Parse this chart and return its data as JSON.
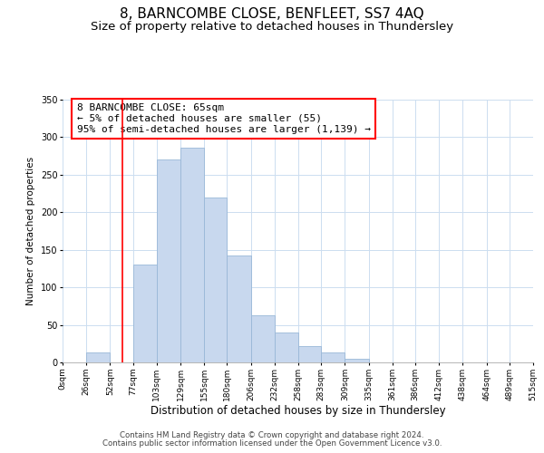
{
  "title": "8, BARNCOMBE CLOSE, BENFLEET, SS7 4AQ",
  "subtitle": "Size of property relative to detached houses in Thundersley",
  "xlabel": "Distribution of detached houses by size in Thundersley",
  "ylabel": "Number of detached properties",
  "bar_color": "#c8d8ee",
  "bar_edge_color": "#99b8d8",
  "redline_x": 65,
  "annotation_title": "8 BARNCOMBE CLOSE: 65sqm",
  "annotation_line1": "← 5% of detached houses are smaller (55)",
  "annotation_line2": "95% of semi-detached houses are larger (1,139) →",
  "bin_edges": [
    0,
    26,
    52,
    77,
    103,
    129,
    155,
    180,
    206,
    232,
    258,
    283,
    309,
    335,
    361,
    386,
    412,
    438,
    464,
    489,
    515
  ],
  "bin_counts": [
    0,
    13,
    0,
    130,
    270,
    286,
    220,
    142,
    63,
    40,
    22,
    13,
    5,
    0,
    0,
    0,
    0,
    0,
    0,
    0
  ],
  "tick_labels": [
    "0sqm",
    "26sqm",
    "52sqm",
    "77sqm",
    "103sqm",
    "129sqm",
    "155sqm",
    "180sqm",
    "206sqm",
    "232sqm",
    "258sqm",
    "283sqm",
    "309sqm",
    "335sqm",
    "361sqm",
    "386sqm",
    "412sqm",
    "438sqm",
    "464sqm",
    "489sqm",
    "515sqm"
  ],
  "ylim": [
    0,
    350
  ],
  "yticks": [
    0,
    50,
    100,
    150,
    200,
    250,
    300,
    350
  ],
  "footer_line1": "Contains HM Land Registry data © Crown copyright and database right 2024.",
  "footer_line2": "Contains public sector information licensed under the Open Government Licence v3.0.",
  "background_color": "#ffffff",
  "grid_color": "#ccddf0",
  "title_fontsize": 11,
  "subtitle_fontsize": 9.5,
  "xlabel_fontsize": 8.5,
  "ylabel_fontsize": 7.5,
  "footer_fontsize": 6.2,
  "tick_fontsize": 6.5,
  "annot_fontsize": 8
}
